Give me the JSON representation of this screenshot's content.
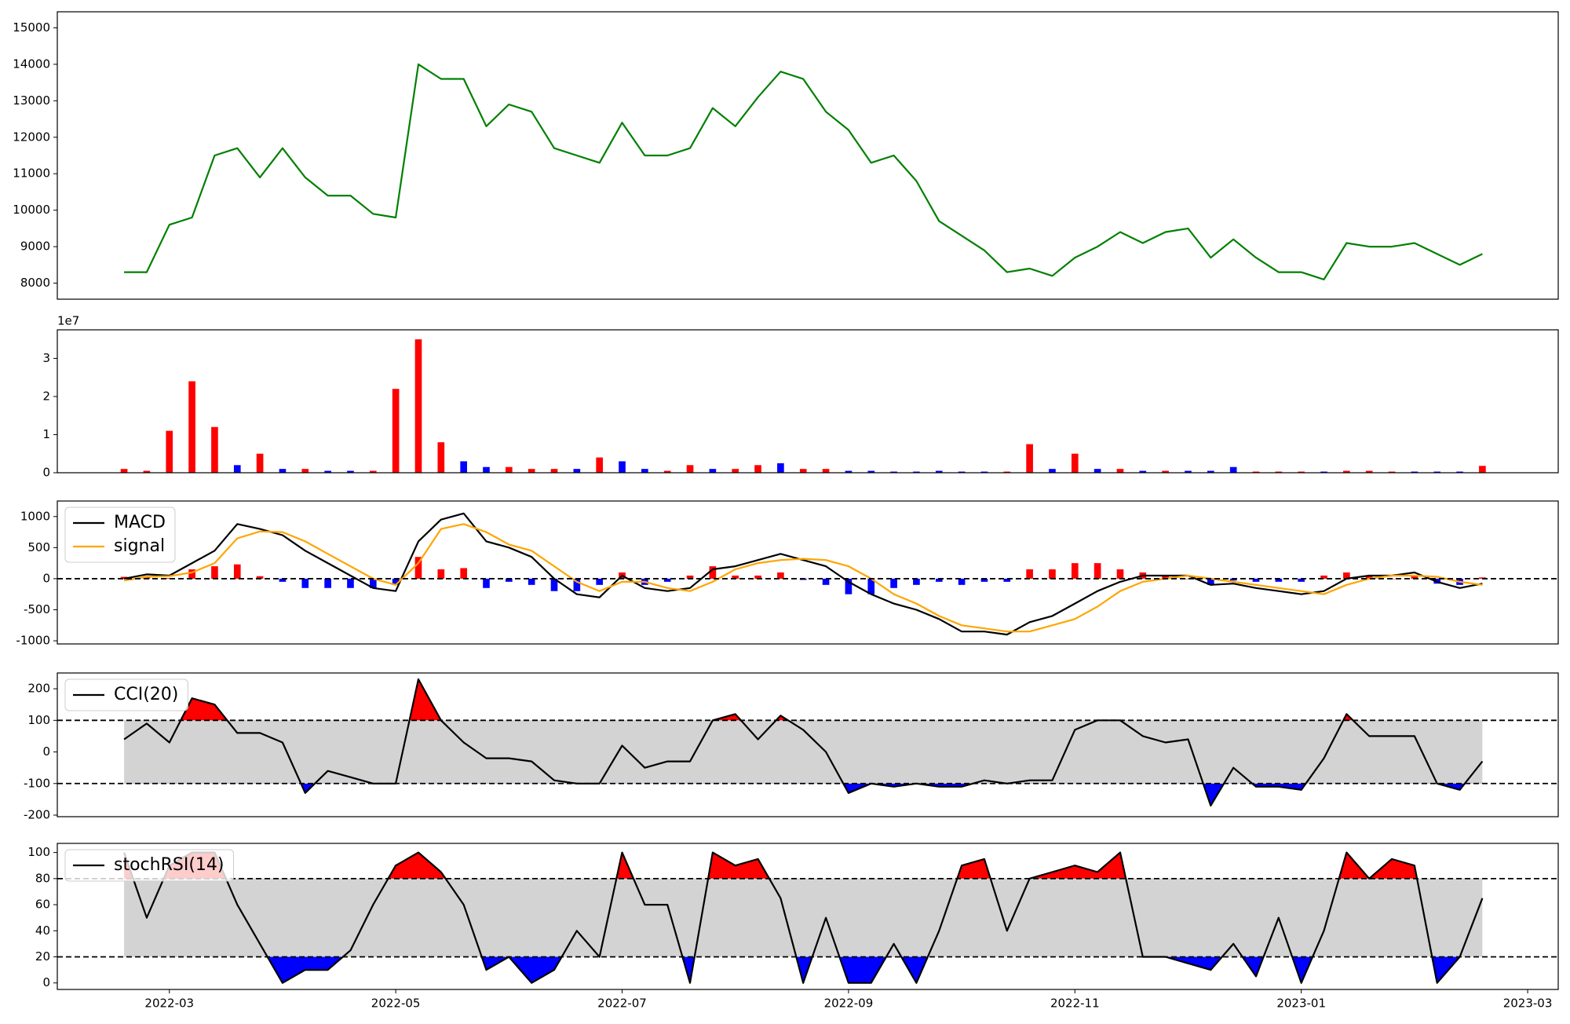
{
  "chart_data": [
    {
      "type": "line",
      "x": [
        2.6,
        2.8,
        3,
        3.2,
        3.4,
        3.6,
        3.8,
        4,
        4.2,
        4.4,
        4.6,
        4.8,
        5,
        5.2,
        5.4,
        5.6,
        5.8,
        6,
        6.2,
        6.4,
        6.6,
        6.8,
        7,
        7.2,
        7.4,
        7.6,
        7.8,
        8,
        8.2,
        8.4,
        8.6,
        8.8,
        9,
        9.2,
        9.4,
        9.6,
        9.8,
        10,
        10.2,
        10.4,
        10.6,
        10.8,
        11,
        11.2,
        11.4,
        11.6,
        11.8,
        12,
        12.2,
        12.4,
        12.6,
        12.8,
        13,
        13.2,
        13.4,
        13.6,
        13.8,
        14,
        14.2,
        14.4,
        14.6
      ],
      "xlim": [
        2.01,
        15.27
      ],
      "series": [
        {
          "color": "#008000",
          "values": [
            8300,
            8300,
            9600,
            9800,
            11500,
            11700,
            10900,
            11700,
            10900,
            10400,
            10400,
            9900,
            9800,
            14000,
            13600,
            13600,
            12300,
            12900,
            12700,
            11700,
            11500,
            11300,
            12400,
            11500,
            11500,
            11700,
            12800,
            12300,
            13100,
            13800,
            13600,
            12700,
            12200,
            11300,
            11500,
            10800,
            9700,
            9300,
            8900,
            8300,
            8400,
            8200,
            8700,
            9000,
            9400,
            9100,
            9400,
            9500,
            8700,
            9200,
            8700,
            8300,
            8300,
            8100,
            9100,
            9000,
            9000,
            9100,
            8800,
            8500,
            8800
          ]
        }
      ],
      "ylim": [
        7560,
        15440
      ],
      "yticks": [
        8000,
        9000,
        10000,
        11000,
        12000,
        13000,
        14000,
        15000
      ]
    },
    {
      "type": "bar",
      "x": [
        2.6,
        2.8,
        3,
        3.2,
        3.4,
        3.6,
        3.8,
        4,
        4.2,
        4.4,
        4.6,
        4.8,
        5,
        5.2,
        5.4,
        5.6,
        5.8,
        6,
        6.2,
        6.4,
        6.6,
        6.8,
        7,
        7.2,
        7.4,
        7.6,
        7.8,
        8,
        8.2,
        8.4,
        8.6,
        8.8,
        9,
        9.2,
        9.4,
        9.6,
        9.8,
        10,
        10.2,
        10.4,
        10.6,
        10.8,
        11,
        11.2,
        11.4,
        11.6,
        11.8,
        12,
        12.2,
        12.4,
        12.6,
        12.8,
        13,
        13.2,
        13.4,
        13.6,
        13.8,
        14,
        14.2,
        14.4,
        14.6
      ],
      "xlim": [
        2.01,
        15.27
      ],
      "values": [
        1000000,
        500000,
        11000000,
        24000000,
        12000000,
        2000000,
        5000000,
        1000000,
        1000000,
        500000,
        500000,
        500000,
        22000000,
        35000000,
        8000000,
        3000000,
        1500000,
        1500000,
        1000000,
        1000000,
        1000000,
        4000000,
        3000000,
        1000000,
        500000,
        2000000,
        1000000,
        1000000,
        2000000,
        2500000,
        1000000,
        1000000,
        500000,
        500000,
        300000,
        300000,
        500000,
        300000,
        300000,
        300000,
        7500000,
        1000000,
        5000000,
        1000000,
        1000000,
        500000,
        500000,
        500000,
        500000,
        1500000,
        300000,
        300000,
        300000,
        300000,
        500000,
        500000,
        300000,
        300000,
        300000,
        300000,
        1800000
      ],
      "colors": [
        "#ff0000",
        "#ff0000",
        "#ff0000",
        "#ff0000",
        "#ff0000",
        "#0000ff",
        "#ff0000",
        "#0000ff",
        "#ff0000",
        "#0000ff",
        "#0000ff",
        "#ff0000",
        "#ff0000",
        "#ff0000",
        "#ff0000",
        "#0000ff",
        "#0000ff",
        "#ff0000",
        "#ff0000",
        "#ff0000",
        "#0000ff",
        "#ff0000",
        "#0000ff",
        "#0000ff",
        "#ff0000",
        "#ff0000",
        "#0000ff",
        "#ff0000",
        "#ff0000",
        "#0000ff",
        "#ff0000",
        "#ff0000",
        "#0000ff",
        "#0000ff",
        "#0000ff",
        "#0000ff",
        "#0000ff",
        "#0000ff",
        "#0000ff",
        "#ff0000",
        "#ff0000",
        "#0000ff",
        "#ff0000",
        "#0000ff",
        "#ff0000",
        "#0000ff",
        "#ff0000",
        "#0000ff",
        "#0000ff",
        "#0000ff",
        "#ff0000",
        "#ff0000",
        "#ff0000",
        "#0000ff",
        "#ff0000",
        "#ff0000",
        "#ff0000",
        "#0000ff",
        "#0000ff",
        "#0000ff",
        "#ff0000"
      ],
      "ylim": [
        0,
        37500000
      ],
      "yticks": [
        {
          "value": 0,
          "label": "0"
        },
        {
          "value": 10000000,
          "label": "1"
        },
        {
          "value": 20000000,
          "label": "2"
        },
        {
          "value": 30000000,
          "label": "3"
        }
      ],
      "y_offset_label": "1e7"
    },
    {
      "type": "line",
      "x": [
        2.6,
        2.8,
        3,
        3.2,
        3.4,
        3.6,
        3.8,
        4,
        4.2,
        4.4,
        4.6,
        4.8,
        5,
        5.2,
        5.4,
        5.6,
        5.8,
        6,
        6.2,
        6.4,
        6.6,
        6.8,
        7,
        7.2,
        7.4,
        7.6,
        7.8,
        8,
        8.2,
        8.4,
        8.6,
        8.8,
        9,
        9.2,
        9.4,
        9.6,
        9.8,
        10,
        10.2,
        10.4,
        10.6,
        10.8,
        11,
        11.2,
        11.4,
        11.6,
        11.8,
        12,
        12.2,
        12.4,
        12.6,
        12.8,
        13,
        13.2,
        13.4,
        13.6,
        13.8,
        14,
        14.2,
        14.4,
        14.6
      ],
      "xlim": [
        2.01,
        15.27
      ],
      "series": [
        {
          "type": "bar",
          "positive_color": "#ff0000",
          "negative_color": "#0000ff",
          "values": [
            30,
            40,
            10,
            150,
            200,
            230,
            40,
            -50,
            -150,
            -150,
            -150,
            -150,
            -100,
            350,
            150,
            170,
            -150,
            -50,
            -100,
            -200,
            -200,
            -100,
            100,
            -100,
            -50,
            50,
            200,
            50,
            50,
            100,
            -20,
            -100,
            -250,
            -250,
            -150,
            -100,
            -50,
            -100,
            -50,
            -50,
            150,
            150,
            250,
            250,
            150,
            100,
            50,
            0,
            -100,
            -30,
            -50,
            -50,
            -50,
            50,
            100,
            50,
            0,
            50,
            -80,
            -100,
            20
          ]
        },
        {
          "name": "MACD",
          "color": "#000000",
          "values": [
            0,
            70,
            50,
            250,
            450,
            880,
            800,
            700,
            450,
            250,
            50,
            -150,
            -200,
            600,
            950,
            1050,
            600,
            500,
            350,
            0,
            -250,
            -300,
            50,
            -150,
            -200,
            -150,
            150,
            200,
            300,
            400,
            300,
            200,
            -50,
            -250,
            -400,
            -500,
            -650,
            -850,
            -850,
            -900,
            -700,
            -600,
            -400,
            -200,
            -50,
            50,
            50,
            50,
            -100,
            -80,
            -150,
            -200,
            -250,
            -200,
            0,
            50,
            50,
            100,
            -50,
            -150,
            -80
          ]
        },
        {
          "name": "signal",
          "color": "#ffa500",
          "values": [
            -30,
            30,
            40,
            100,
            250,
            650,
            760,
            750,
            600,
            400,
            200,
            0,
            -100,
            250,
            800,
            880,
            750,
            550,
            450,
            200,
            -50,
            -200,
            -50,
            -50,
            -150,
            -200,
            -50,
            150,
            250,
            300,
            320,
            300,
            200,
            0,
            -250,
            -400,
            -600,
            -750,
            -800,
            -850,
            -850,
            -750,
            -650,
            -450,
            -200,
            -50,
            0,
            50,
            0,
            -50,
            -100,
            -150,
            -200,
            -250,
            -100,
            0,
            50,
            50,
            30,
            -50,
            -100
          ]
        }
      ],
      "ylim": [
        -1050,
        1250
      ],
      "yticks": [
        -1000,
        -500,
        0,
        500,
        1000
      ],
      "zero_line": true,
      "legend": "upper left"
    },
    {
      "type": "line",
      "x": [
        2.6,
        2.8,
        3,
        3.2,
        3.4,
        3.6,
        3.8,
        4,
        4.2,
        4.4,
        4.6,
        4.8,
        5,
        5.2,
        5.4,
        5.6,
        5.8,
        6,
        6.2,
        6.4,
        6.6,
        6.8,
        7,
        7.2,
        7.4,
        7.6,
        7.8,
        8,
        8.2,
        8.4,
        8.6,
        8.8,
        9,
        9.2,
        9.4,
        9.6,
        9.8,
        10,
        10.2,
        10.4,
        10.6,
        10.8,
        11,
        11.2,
        11.4,
        11.6,
        11.8,
        12,
        12.2,
        12.4,
        12.6,
        12.8,
        13,
        13.2,
        13.4,
        13.6,
        13.8,
        14,
        14.2,
        14.4,
        14.6
      ],
      "xlim": [
        2.01,
        15.27
      ],
      "series": [
        {
          "name": "CCI(20)",
          "color": "#000000",
          "values": [
            40,
            90,
            30,
            170,
            150,
            60,
            60,
            30,
            -130,
            -60,
            -80,
            -100,
            -100,
            230,
            100,
            30,
            -20,
            -20,
            -30,
            -90,
            -100,
            -100,
            20,
            -50,
            -30,
            -30,
            100,
            120,
            40,
            115,
            70,
            0,
            -130,
            -100,
            -110,
            -100,
            -110,
            -110,
            -90,
            -100,
            -90,
            -90,
            70,
            100,
            100,
            50,
            30,
            40,
            -170,
            -50,
            -110,
            -110,
            -120,
            -20,
            120,
            50,
            50,
            50,
            -100,
            -120,
            -30
          ]
        }
      ],
      "bands": {
        "upper": 100,
        "lower": -100,
        "fill": "#d3d3d3",
        "upper_fill": "#ff0000",
        "lower_fill": "#0000ff"
      },
      "ylim": [
        -205,
        250
      ],
      "yticks": [
        -200,
        -100,
        0,
        100,
        200
      ],
      "legend": "upper left"
    },
    {
      "type": "line",
      "x": [
        2.6,
        2.8,
        3,
        3.2,
        3.4,
        3.6,
        3.8,
        4,
        4.2,
        4.4,
        4.6,
        4.8,
        5,
        5.2,
        5.4,
        5.6,
        5.8,
        6,
        6.2,
        6.4,
        6.6,
        6.8,
        7,
        7.2,
        7.4,
        7.6,
        7.8,
        8,
        8.2,
        8.4,
        8.6,
        8.8,
        9,
        9.2,
        9.4,
        9.6,
        9.8,
        10,
        10.2,
        10.4,
        10.6,
        10.8,
        11,
        11.2,
        11.4,
        11.6,
        11.8,
        12,
        12.2,
        12.4,
        12.6,
        12.8,
        13,
        13.2,
        13.4,
        13.6,
        13.8,
        14,
        14.2,
        14.4,
        14.6
      ],
      "xlim": [
        2.01,
        15.27
      ],
      "series": [
        {
          "name": "stochRSI(14)",
          "color": "#000000",
          "values": [
            100,
            50,
            90,
            100,
            100,
            60,
            30,
            0,
            10,
            10,
            25,
            60,
            90,
            100,
            85,
            60,
            10,
            20,
            0,
            10,
            40,
            20,
            100,
            60,
            60,
            0,
            100,
            90,
            95,
            65,
            0,
            50,
            0,
            0,
            30,
            0,
            40,
            90,
            95,
            40,
            80,
            85,
            90,
            85,
            100,
            20,
            20,
            15,
            10,
            30,
            5,
            50,
            0,
            40,
            100,
            80,
            95,
            90,
            0,
            20,
            65
          ]
        }
      ],
      "bands": {
        "upper": 80,
        "lower": 20,
        "fill": "#d3d3d3",
        "upper_fill": "#ff0000",
        "lower_fill": "#0000ff"
      },
      "ylim": [
        -5,
        107
      ],
      "yticks": [
        0,
        20,
        40,
        60,
        80,
        100
      ],
      "xticks": [
        {
          "value": 3,
          "label": "2022-03"
        },
        {
          "value": 5,
          "label": "2022-05"
        },
        {
          "value": 7,
          "label": "2022-07"
        },
        {
          "value": 9,
          "label": "2022-09"
        },
        {
          "value": 11,
          "label": "2022-11"
        },
        {
          "value": 13,
          "label": "2023-01"
        },
        {
          "value": 15,
          "label": "2023-03"
        }
      ],
      "legend": "upper left"
    }
  ]
}
